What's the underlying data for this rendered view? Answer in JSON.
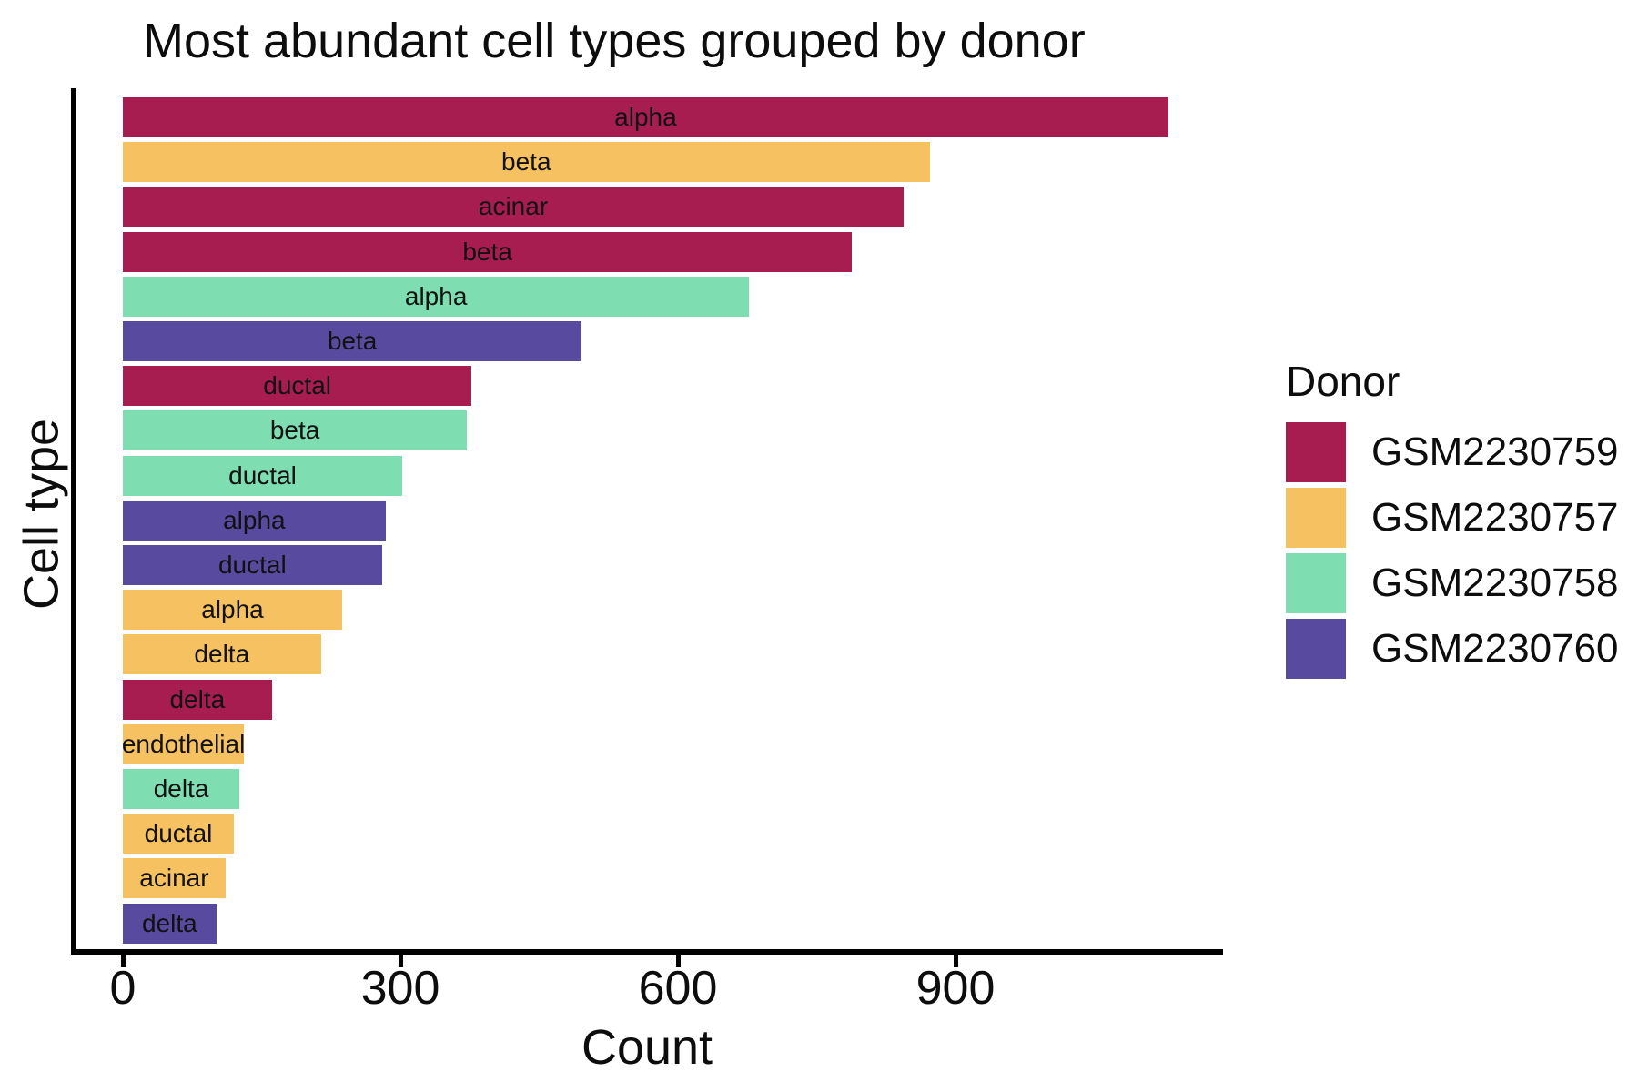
{
  "title": "Most abundant cell types grouped by donor",
  "axes": {
    "x_label": "Count",
    "y_label": "Cell type",
    "x_tick_labels": [
      "0",
      "300",
      "600",
      "900"
    ]
  },
  "legend": {
    "title": "Donor",
    "entries": [
      {
        "label": "GSM2230759",
        "color": "#A81D4F"
      },
      {
        "label": "GSM2230757",
        "color": "#F6C160"
      },
      {
        "label": "GSM2230758",
        "color": "#7EDEB1"
      },
      {
        "label": "GSM2230760",
        "color": "#584A9E"
      }
    ]
  },
  "chart_data": {
    "type": "bar",
    "orientation": "horizontal",
    "title": "Most abundant cell types grouped by donor",
    "xlabel": "Count",
    "ylabel": "Cell type",
    "xlim": [
      0,
      1190
    ],
    "xticks": [
      0,
      300,
      600,
      900
    ],
    "grid": "off",
    "legend_title": "Donor",
    "legend_position": "right",
    "donor_colors": {
      "GSM2230759": "#A81D4F",
      "GSM2230757": "#F6C160",
      "GSM2230758": "#7EDEB1",
      "GSM2230760": "#584A9E"
    },
    "bars": [
      {
        "cell_type": "alpha",
        "donor": "GSM2230759",
        "count": 1130
      },
      {
        "cell_type": "beta",
        "donor": "GSM2230757",
        "count": 872
      },
      {
        "cell_type": "acinar",
        "donor": "GSM2230759",
        "count": 844
      },
      {
        "cell_type": "beta",
        "donor": "GSM2230759",
        "count": 788
      },
      {
        "cell_type": "alpha",
        "donor": "GSM2230758",
        "count": 677
      },
      {
        "cell_type": "beta",
        "donor": "GSM2230760",
        "count": 496
      },
      {
        "cell_type": "ductal",
        "donor": "GSM2230759",
        "count": 377
      },
      {
        "cell_type": "beta",
        "donor": "GSM2230758",
        "count": 372
      },
      {
        "cell_type": "ductal",
        "donor": "GSM2230758",
        "count": 302
      },
      {
        "cell_type": "alpha",
        "donor": "GSM2230760",
        "count": 284
      },
      {
        "cell_type": "ductal",
        "donor": "GSM2230760",
        "count": 280
      },
      {
        "cell_type": "alpha",
        "donor": "GSM2230757",
        "count": 237
      },
      {
        "cell_type": "delta",
        "donor": "GSM2230757",
        "count": 214
      },
      {
        "cell_type": "delta",
        "donor": "GSM2230759",
        "count": 161
      },
      {
        "cell_type": "endothelial",
        "donor": "GSM2230757",
        "count": 131
      },
      {
        "cell_type": "delta",
        "donor": "GSM2230758",
        "count": 126
      },
      {
        "cell_type": "ductal",
        "donor": "GSM2230757",
        "count": 120
      },
      {
        "cell_type": "acinar",
        "donor": "GSM2230757",
        "count": 111
      },
      {
        "cell_type": "delta",
        "donor": "GSM2230760",
        "count": 101
      }
    ]
  }
}
